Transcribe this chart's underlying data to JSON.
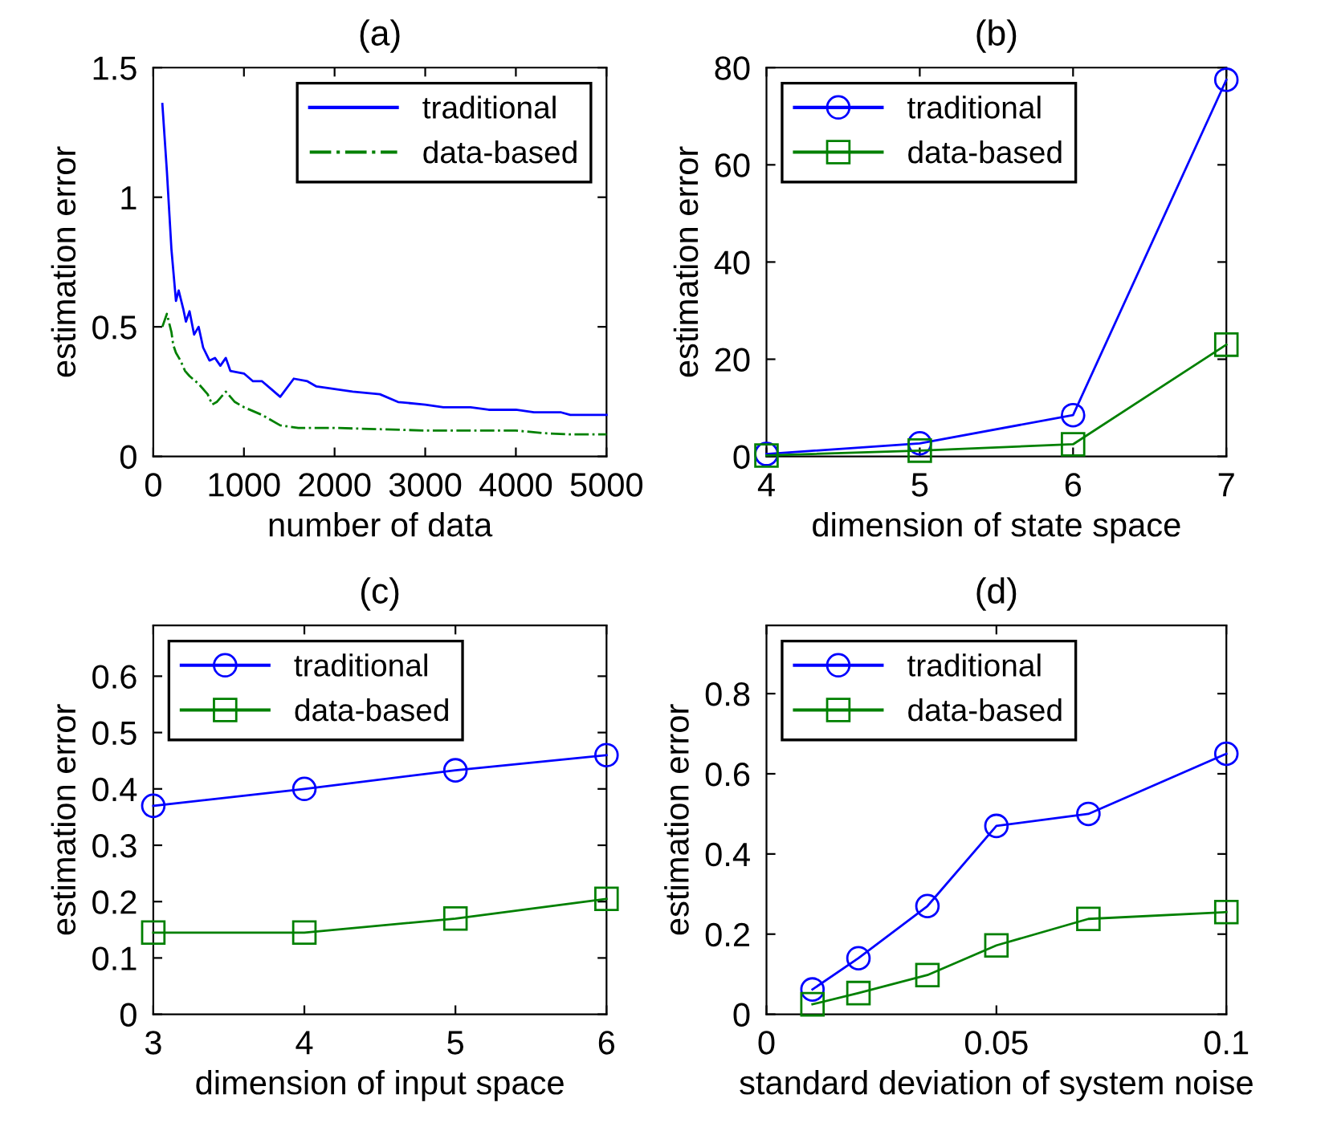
{
  "chart_data": [
    {
      "type": "line",
      "title": "(a)",
      "xlabel": "number of data",
      "ylabel": "estimation error",
      "xlim": [
        0,
        5000
      ],
      "xticks": [
        0,
        1000,
        2000,
        3000,
        4000,
        5000
      ],
      "ylim": [
        0,
        1.5
      ],
      "yticks": [
        0,
        0.5,
        1,
        1.5
      ],
      "legend": "top right",
      "grid": false,
      "series": [
        {
          "name": "traditional",
          "color": "#0000ff",
          "marker": "none",
          "line_style": "solid",
          "x": [
            100,
            150,
            200,
            250,
            280,
            330,
            360,
            400,
            450,
            500,
            550,
            620,
            680,
            740,
            800,
            850,
            1000,
            1100,
            1200,
            1300,
            1400,
            1550,
            1700,
            1800,
            2000,
            2200,
            2500,
            2700,
            3000,
            3200,
            3500,
            3700,
            4000,
            4200,
            4500,
            4600,
            5000
          ],
          "values": [
            1.36,
            1.1,
            0.8,
            0.6,
            0.64,
            0.57,
            0.52,
            0.56,
            0.47,
            0.5,
            0.42,
            0.37,
            0.38,
            0.35,
            0.38,
            0.33,
            0.32,
            0.29,
            0.29,
            0.26,
            0.23,
            0.3,
            0.29,
            0.27,
            0.26,
            0.25,
            0.24,
            0.21,
            0.2,
            0.19,
            0.19,
            0.18,
            0.18,
            0.17,
            0.17,
            0.16,
            0.16
          ]
        },
        {
          "name": "data-based",
          "color": "#008000",
          "marker": "none",
          "line_style": "dashdot",
          "x": [
            100,
            150,
            200,
            220,
            250,
            300,
            350,
            400,
            500,
            600,
            650,
            700,
            800,
            900,
            1000,
            1200,
            1400,
            1600,
            2000,
            2500,
            3000,
            3500,
            4000,
            4300,
            4600,
            5000
          ],
          "values": [
            0.5,
            0.55,
            0.48,
            0.43,
            0.4,
            0.37,
            0.33,
            0.31,
            0.28,
            0.24,
            0.2,
            0.21,
            0.25,
            0.21,
            0.19,
            0.16,
            0.12,
            0.11,
            0.11,
            0.105,
            0.1,
            0.1,
            0.1,
            0.09,
            0.085,
            0.085
          ]
        }
      ]
    },
    {
      "type": "line",
      "title": "(b)",
      "xlabel": "dimension of state space",
      "ylabel": "estimation error",
      "xlim": [
        4,
        7
      ],
      "xticks": [
        4,
        5,
        6,
        7
      ],
      "ylim": [
        0,
        80
      ],
      "yticks": [
        0,
        20,
        40,
        60,
        80
      ],
      "legend": "top left",
      "grid": false,
      "series": [
        {
          "name": "traditional",
          "color": "#0000ff",
          "marker": "circle",
          "line_style": "solid",
          "x": [
            4,
            5,
            6,
            7
          ],
          "values": [
            0.5,
            2.7,
            8.5,
            77.5
          ]
        },
        {
          "name": "data-based",
          "color": "#008000",
          "marker": "square",
          "line_style": "solid",
          "x": [
            4,
            5,
            6,
            7
          ],
          "values": [
            0.2,
            1.2,
            2.5,
            23
          ]
        }
      ]
    },
    {
      "type": "line",
      "title": "(c)",
      "xlabel": "dimension of input space",
      "ylabel": "estimation error",
      "xlim": [
        3,
        6
      ],
      "xticks": [
        3,
        4,
        5,
        6
      ],
      "ylim": [
        0,
        0.69
      ],
      "yticks": [
        0,
        0.1,
        0.2,
        0.3,
        0.4,
        0.5,
        0.6
      ],
      "legend": "top left",
      "grid": false,
      "series": [
        {
          "name": "traditional",
          "color": "#0000ff",
          "marker": "circle",
          "line_style": "solid",
          "x": [
            3,
            4,
            5,
            6
          ],
          "values": [
            0.37,
            0.4,
            0.433,
            0.46
          ]
        },
        {
          "name": "data-based",
          "color": "#008000",
          "marker": "square",
          "line_style": "solid",
          "x": [
            3,
            4,
            5,
            6
          ],
          "values": [
            0.145,
            0.145,
            0.17,
            0.205
          ]
        }
      ]
    },
    {
      "type": "line",
      "title": "(d)",
      "xlabel": "standard deviation of system noise",
      "ylabel": "estimation error",
      "xlim": [
        0,
        0.1
      ],
      "xticks": [
        0,
        0.05,
        0.1
      ],
      "ylim": [
        0,
        0.97
      ],
      "yticks": [
        0,
        0.2,
        0.4,
        0.6,
        0.8
      ],
      "legend": "top left",
      "grid": false,
      "series": [
        {
          "name": "traditional",
          "color": "#0000ff",
          "marker": "circle",
          "line_style": "solid",
          "x": [
            0.01,
            0.02,
            0.035,
            0.05,
            0.07,
            0.1
          ],
          "values": [
            0.062,
            0.14,
            0.27,
            0.47,
            0.5,
            0.65
          ]
        },
        {
          "name": "data-based",
          "color": "#008000",
          "marker": "square",
          "line_style": "solid",
          "x": [
            0.01,
            0.02,
            0.035,
            0.05,
            0.07,
            0.1
          ],
          "values": [
            0.025,
            0.053,
            0.098,
            0.172,
            0.238,
            0.255
          ]
        }
      ]
    }
  ]
}
